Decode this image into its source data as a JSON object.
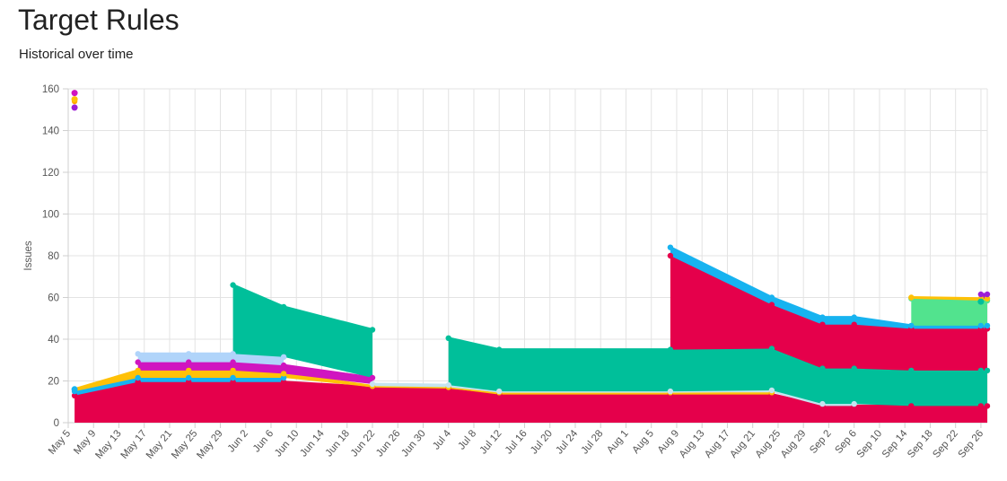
{
  "page": {
    "title": "Target Rules",
    "subtitle": "Historical over time"
  },
  "chart_data": {
    "type": "area",
    "stacked": true,
    "ylabel": "Issues",
    "ylim": [
      0,
      160
    ],
    "yticks": [
      0,
      20,
      40,
      60,
      80,
      100,
      120,
      140,
      160
    ],
    "xlim": [
      "2023-05-05",
      "2023-09-27"
    ],
    "x_tick_labels": [
      "May 5",
      "May 9",
      "May 13",
      "May 17",
      "May 21",
      "May 25",
      "May 29",
      "Jun 2",
      "Jun 6",
      "Jun 10",
      "Jun 14",
      "Jun 18",
      "Jun 22",
      "Jun 26",
      "Jun 30",
      "Jul 4",
      "Jul 8",
      "Jul 12",
      "Jul 16",
      "Jul 20",
      "Jul 24",
      "Jul 28",
      "Aug 1",
      "Aug 5",
      "Aug 9",
      "Aug 13",
      "Aug 17",
      "Aug 21",
      "Aug 25",
      "Aug 29",
      "Sep 2",
      "Sep 6",
      "Sep 10",
      "Sep 14",
      "Sep 18",
      "Sep 22",
      "Sep 26"
    ],
    "grid": true,
    "x": [
      "2023-05-06",
      "2023-05-16",
      "2023-05-24",
      "2023-05-31",
      "2023-06-08",
      "2023-06-22",
      "2023-07-04",
      "2023-07-12",
      "2023-08-08",
      "2023-08-24",
      "2023-09-01",
      "2023-09-06",
      "2023-09-15",
      "2023-09-26",
      "2023-09-27"
    ],
    "series": [
      {
        "color": "#e5004b",
        "values": [
          13,
          19.5,
          19.5,
          19.5,
          19.5,
          17,
          16.5,
          13.5,
          13.5,
          13.5,
          8,
          8,
          8,
          8,
          8
        ]
      },
      {
        "color": "#17b3f0",
        "values": [
          2,
          2,
          2,
          2,
          2,
          0,
          0,
          0,
          0,
          0,
          0,
          0,
          0,
          0,
          0
        ]
      },
      {
        "color": "#ffc107",
        "values": [
          1,
          3.5,
          3.5,
          3.5,
          2,
          0.5,
          0.5,
          1,
          1,
          1,
          0,
          0,
          0,
          0,
          0
        ]
      },
      {
        "color": "#c5e4f0",
        "values": [
          0,
          0,
          0,
          0,
          0,
          1,
          1,
          0.5,
          0.5,
          1,
          1,
          1,
          0,
          0,
          0
        ]
      },
      {
        "color": "#00bf9a",
        "values": [
          0,
          0,
          0,
          0,
          0,
          0,
          22.5,
          20,
          20,
          20,
          17,
          17,
          17,
          17,
          17
        ]
      },
      {
        "color": "#d015c0",
        "values": [
          0,
          4,
          4,
          4,
          4,
          3,
          0,
          0,
          0,
          0,
          0,
          0,
          0,
          0,
          0
        ]
      },
      {
        "color": "#ffa500",
        "values": [
          138,
          0,
          0,
          0,
          0,
          0,
          0,
          0,
          0,
          0,
          0,
          0,
          0,
          0,
          0
        ]
      },
      {
        "color": "#b0d4fa",
        "values": [
          0,
          4,
          4,
          4,
          4,
          0,
          0,
          0,
          0,
          0,
          0,
          0,
          0,
          0,
          0
        ]
      },
      {
        "color": "#00bf9a",
        "values": [
          0,
          0,
          0,
          33,
          24,
          23,
          0,
          0,
          0,
          0,
          0,
          0,
          0,
          0,
          0
        ]
      },
      {
        "color": "#e5004b",
        "values": [
          0,
          0,
          0,
          0,
          0,
          0,
          0,
          0,
          45,
          21,
          21,
          21,
          20,
          20,
          20
        ]
      },
      {
        "color": "#17b3f0",
        "values": [
          0,
          0,
          0,
          0,
          0,
          0,
          0,
          0,
          4,
          3.5,
          3.5,
          3.5,
          1.5,
          1.5,
          1.5
        ]
      },
      {
        "color": "#52e38e",
        "values": [
          0,
          0,
          0,
          0,
          0,
          0,
          0,
          0,
          0,
          0,
          0,
          0,
          13,
          12,
          12
        ]
      },
      {
        "color": "#ffc107",
        "values": [
          0,
          0,
          0,
          0,
          0,
          0,
          0,
          0,
          0,
          0,
          0,
          0,
          0.5,
          1,
          1
        ]
      },
      {
        "color": "#9c1ed6",
        "values": [
          0,
          0,
          0,
          0,
          0,
          0,
          0,
          0,
          0,
          0,
          0,
          0,
          0,
          2,
          2
        ]
      }
    ],
    "extra_points": [
      {
        "x": "2023-05-06",
        "y": 151,
        "color": "#9c1ed6"
      },
      {
        "x": "2023-05-06",
        "y": 155,
        "color": "#ffc107"
      },
      {
        "x": "2023-05-06",
        "y": 158,
        "color": "#d015c0"
      },
      {
        "x": "2023-05-06",
        "y": 16,
        "color": "#17b3f0"
      },
      {
        "x": "2023-09-26",
        "y": 58,
        "color": "#00bf9a"
      }
    ]
  }
}
